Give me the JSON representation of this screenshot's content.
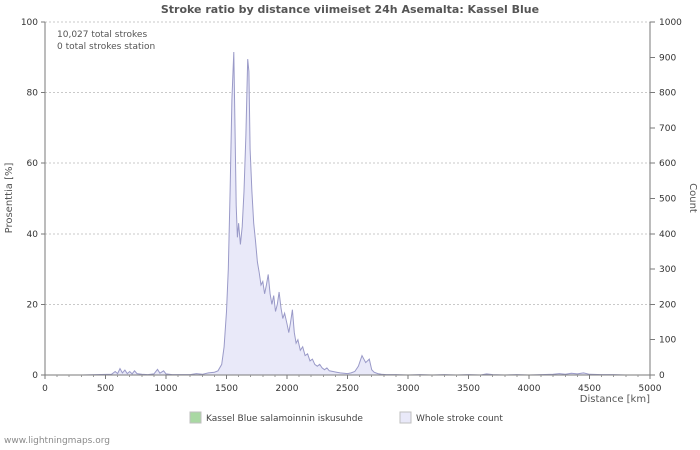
{
  "page": {
    "footer": "www.lightningmaps.org"
  },
  "chart_data": {
    "type": "area",
    "title": "Stroke ratio by distance viimeiset 24h Asemalta: Kassel Blue",
    "annotations": [
      "10,027 total strokes",
      "0 total strokes station"
    ],
    "xlabel": "Distance   [km]",
    "ylabel_left": "Prosenttia   [%]",
    "ylabel_right": "Count",
    "xlim": [
      0,
      5000
    ],
    "ylim_left": [
      0,
      100
    ],
    "ylim_right": [
      0,
      1000
    ],
    "x_ticks": [
      0,
      500,
      1000,
      1500,
      2000,
      2500,
      3000,
      3500,
      4000,
      4500,
      5000
    ],
    "y_ticks_left": [
      0,
      20,
      40,
      60,
      80,
      100
    ],
    "y_ticks_right": [
      0,
      100,
      200,
      300,
      400,
      500,
      600,
      700,
      800,
      900,
      1000
    ],
    "grid": "horizontal-dotted",
    "legend_position": "bottom",
    "series": [
      {
        "name": "Kassel Blue salamoinnin iskusuhde",
        "axis": "left",
        "color": "#a9d8a3",
        "stroke": "#8bc487",
        "points": [
          [
            0,
            0
          ],
          [
            5000,
            0
          ]
        ]
      },
      {
        "name": "Whole stroke count",
        "axis": "right",
        "color": "#e9e9f9",
        "stroke": "#9a9ac8",
        "points": [
          [
            0,
            0
          ],
          [
            300,
            0
          ],
          [
            550,
            2
          ],
          [
            580,
            10
          ],
          [
            600,
            4
          ],
          [
            620,
            18
          ],
          [
            640,
            6
          ],
          [
            660,
            14
          ],
          [
            680,
            4
          ],
          [
            700,
            10
          ],
          [
            720,
            3
          ],
          [
            740,
            12
          ],
          [
            760,
            4
          ],
          [
            800,
            2
          ],
          [
            850,
            1
          ],
          [
            900,
            3
          ],
          [
            930,
            16
          ],
          [
            950,
            5
          ],
          [
            980,
            12
          ],
          [
            1000,
            3
          ],
          [
            1050,
            1
          ],
          [
            1100,
            1
          ],
          [
            1200,
            1
          ],
          [
            1250,
            4
          ],
          [
            1300,
            2
          ],
          [
            1350,
            6
          ],
          [
            1400,
            8
          ],
          [
            1430,
            12
          ],
          [
            1460,
            30
          ],
          [
            1480,
            80
          ],
          [
            1500,
            180
          ],
          [
            1515,
            300
          ],
          [
            1530,
            520
          ],
          [
            1545,
            780
          ],
          [
            1560,
            915
          ],
          [
            1570,
            700
          ],
          [
            1580,
            480
          ],
          [
            1590,
            390
          ],
          [
            1600,
            430
          ],
          [
            1615,
            370
          ],
          [
            1630,
            420
          ],
          [
            1645,
            520
          ],
          [
            1660,
            680
          ],
          [
            1675,
            895
          ],
          [
            1685,
            860
          ],
          [
            1695,
            640
          ],
          [
            1710,
            520
          ],
          [
            1725,
            430
          ],
          [
            1740,
            380
          ],
          [
            1755,
            320
          ],
          [
            1770,
            290
          ],
          [
            1785,
            255
          ],
          [
            1800,
            265
          ],
          [
            1815,
            230
          ],
          [
            1830,
            255
          ],
          [
            1845,
            285
          ],
          [
            1860,
            230
          ],
          [
            1875,
            200
          ],
          [
            1890,
            225
          ],
          [
            1905,
            180
          ],
          [
            1920,
            200
          ],
          [
            1935,
            235
          ],
          [
            1950,
            190
          ],
          [
            1965,
            160
          ],
          [
            1980,
            175
          ],
          [
            2000,
            145
          ],
          [
            2015,
            120
          ],
          [
            2030,
            150
          ],
          [
            2045,
            185
          ],
          [
            2060,
            120
          ],
          [
            2075,
            90
          ],
          [
            2090,
            100
          ],
          [
            2110,
            70
          ],
          [
            2130,
            80
          ],
          [
            2150,
            55
          ],
          [
            2170,
            60
          ],
          [
            2190,
            40
          ],
          [
            2210,
            45
          ],
          [
            2230,
            30
          ],
          [
            2250,
            25
          ],
          [
            2270,
            30
          ],
          [
            2290,
            20
          ],
          [
            2310,
            15
          ],
          [
            2330,
            20
          ],
          [
            2350,
            12
          ],
          [
            2380,
            10
          ],
          [
            2410,
            8
          ],
          [
            2440,
            6
          ],
          [
            2470,
            5
          ],
          [
            2500,
            4
          ],
          [
            2530,
            6
          ],
          [
            2560,
            10
          ],
          [
            2590,
            25
          ],
          [
            2620,
            55
          ],
          [
            2650,
            35
          ],
          [
            2680,
            45
          ],
          [
            2700,
            15
          ],
          [
            2720,
            8
          ],
          [
            2750,
            4
          ],
          [
            2780,
            2
          ],
          [
            2820,
            1
          ],
          [
            2900,
            1
          ],
          [
            3000,
            0
          ],
          [
            3100,
            1
          ],
          [
            3200,
            0
          ],
          [
            3300,
            1
          ],
          [
            3400,
            0
          ],
          [
            3500,
            1
          ],
          [
            3600,
            0
          ],
          [
            3650,
            3
          ],
          [
            3700,
            1
          ],
          [
            3800,
            0
          ],
          [
            3900,
            1
          ],
          [
            4000,
            0
          ],
          [
            4100,
            1
          ],
          [
            4200,
            2
          ],
          [
            4250,
            4
          ],
          [
            4300,
            2
          ],
          [
            4350,
            5
          ],
          [
            4400,
            3
          ],
          [
            4450,
            6
          ],
          [
            4500,
            2
          ],
          [
            4600,
            1
          ],
          [
            4700,
            1
          ],
          [
            4800,
            0
          ],
          [
            4900,
            0
          ],
          [
            5000,
            0
          ]
        ]
      }
    ]
  }
}
